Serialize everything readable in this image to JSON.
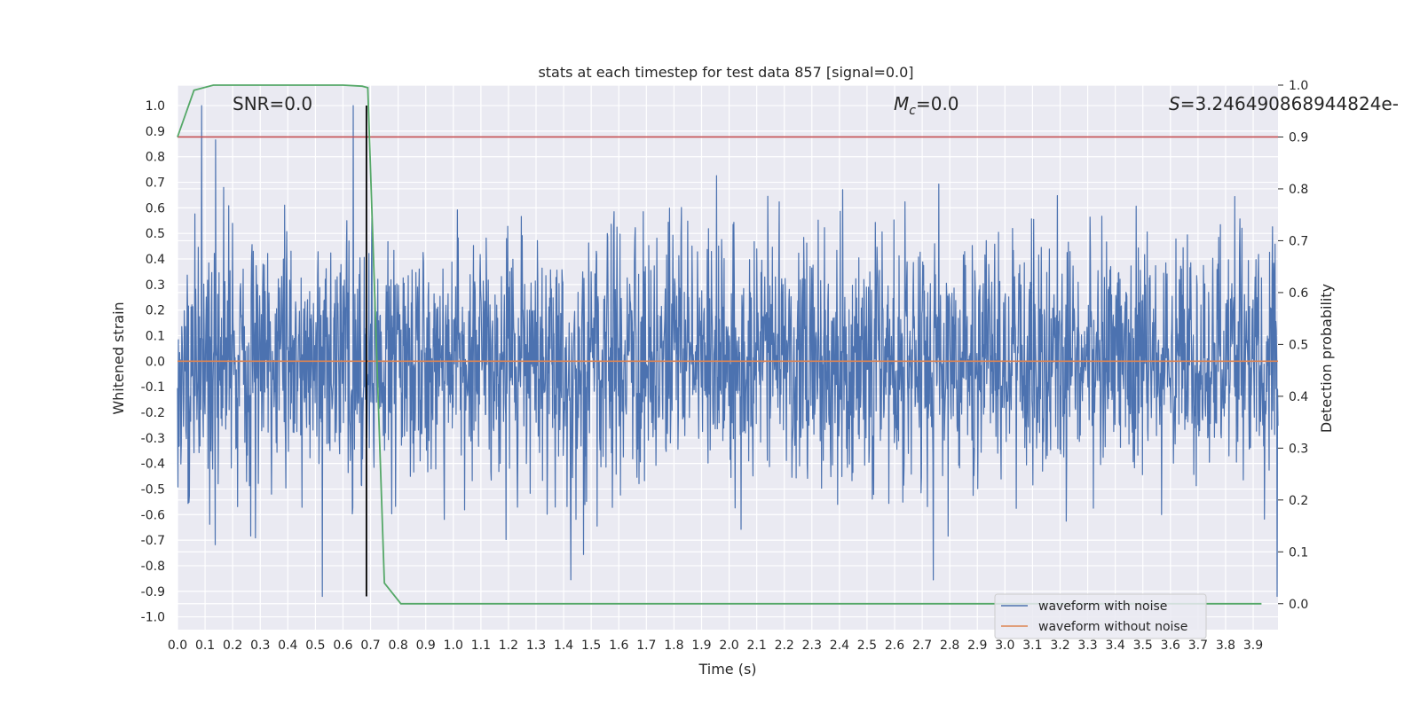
{
  "chart_data": {
    "type": "line",
    "title": "stats at each timestep for test data 857 [signal=0.0]",
    "xlabel": "Time (s)",
    "ylabel": "Whitened strain",
    "y2label": "Detection probability",
    "xlim": [
      0.0,
      3.99
    ],
    "ylim": [
      -1.05,
      1.08
    ],
    "y2lim": [
      -0.05,
      1.0
    ],
    "x_ticks": [
      "0.0",
      "0.1",
      "0.2",
      "0.3",
      "0.4",
      "0.5",
      "0.6",
      "0.7",
      "0.8",
      "0.9",
      "1.0",
      "1.1",
      "1.2",
      "1.3",
      "1.4",
      "1.5",
      "1.6",
      "1.7",
      "1.8",
      "1.9",
      "2.0",
      "2.1",
      "2.2",
      "2.3",
      "2.4",
      "2.5",
      "2.6",
      "2.7",
      "2.8",
      "2.9",
      "3.0",
      "3.1",
      "3.2",
      "3.3",
      "3.4",
      "3.5",
      "3.6",
      "3.7",
      "3.8",
      "3.9"
    ],
    "y_ticks": [
      "1.0",
      "0.9",
      "0.8",
      "0.7",
      "0.6",
      "0.5",
      "0.4",
      "0.3",
      "0.2",
      "0.1",
      "0.0",
      "-0.1",
      "-0.2",
      "-0.3",
      "-0.4",
      "-0.5",
      "-0.6",
      "-0.7",
      "-0.8",
      "-0.9",
      "-1.0"
    ],
    "y2_ticks": [
      "1.0",
      "0.9",
      "0.8",
      "0.7",
      "0.6",
      "0.5",
      "0.4",
      "0.3",
      "0.2",
      "0.1",
      "0.0"
    ],
    "annotations": {
      "snr": "SNR=0.0",
      "mc_symbol": "M",
      "mc_sub": "c",
      "mc_value": "=0.0",
      "s_symbol": "S",
      "s_value": "=3.246490868944824e-"
    },
    "series": [
      {
        "name": "waveform with noise",
        "color": "#4c72b0",
        "axis": "left",
        "kind": "noise",
        "amplitude_range": [
          -0.92,
          1.0
        ]
      },
      {
        "name": "waveform without noise",
        "color": "#dd8452",
        "axis": "left",
        "y": 0.0
      },
      {
        "name": "detection probability",
        "color": "#55a868",
        "axis": "right",
        "x": [
          0.0,
          0.06,
          0.13,
          0.2,
          0.3,
          0.4,
          0.5,
          0.6,
          0.67,
          0.69,
          0.75,
          0.81,
          1.0,
          2.0,
          3.0,
          3.93
        ],
        "y": [
          0.9,
          0.99,
          1.0,
          1.0,
          1.0,
          1.0,
          1.0,
          1.0,
          0.998,
          0.995,
          0.04,
          0.0,
          0.0,
          0.0,
          0.0,
          0.0
        ]
      },
      {
        "name": "threshold",
        "color": "#c44e52",
        "axis": "right",
        "y": 0.9
      },
      {
        "name": "trigger time",
        "color": "#000000",
        "axis": "left",
        "x": 0.685,
        "y_range": [
          -0.92,
          1.0
        ]
      }
    ],
    "legend": {
      "placement": "lower-right",
      "entries": [
        "waveform with noise",
        "waveform without noise"
      ]
    }
  }
}
